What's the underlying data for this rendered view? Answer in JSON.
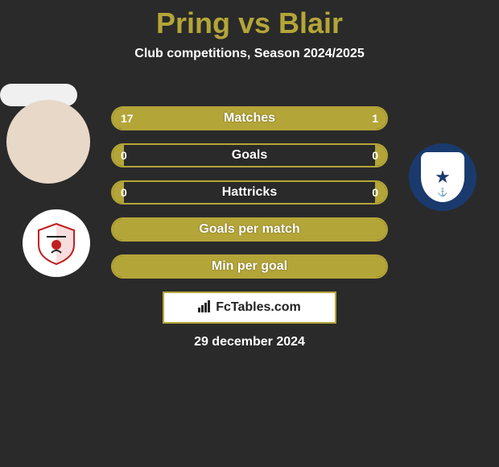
{
  "title": "Pring vs Blair",
  "subtitle": "Club competitions, Season 2024/2025",
  "date": "29 december 2024",
  "brand": "FcTables.com",
  "colors": {
    "accent": "#b4a538",
    "bg": "#2a2a2a",
    "club_right_bg": "#1a3a6e"
  },
  "stats": [
    {
      "label": "Matches",
      "left_val": "17",
      "right_val": "1",
      "left_pct": 78,
      "right_pct": 22,
      "show_vals": true
    },
    {
      "label": "Goals",
      "left_val": "0",
      "right_val": "0",
      "left_pct": 4,
      "right_pct": 4,
      "show_vals": true
    },
    {
      "label": "Hattricks",
      "left_val": "0",
      "right_val": "0",
      "left_pct": 4,
      "right_pct": 4,
      "show_vals": true
    },
    {
      "label": "Goals per match",
      "left_val": "",
      "right_val": "",
      "left_pct": 100,
      "right_pct": 0,
      "show_vals": false
    },
    {
      "label": "Min per goal",
      "left_val": "",
      "right_val": "",
      "left_pct": 100,
      "right_pct": 0,
      "show_vals": false
    }
  ]
}
